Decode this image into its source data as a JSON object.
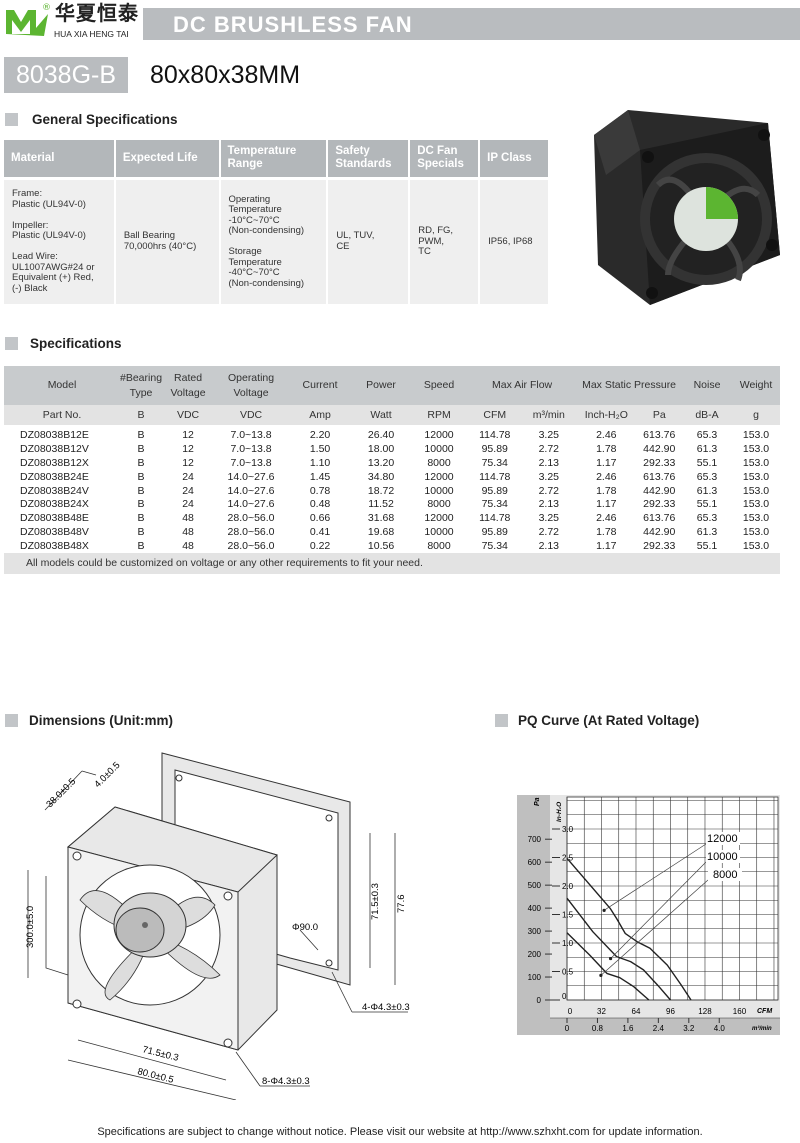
{
  "brand": {
    "cn_name": "华夏恒泰",
    "en_name": "HUA XIA HENG TAI",
    "registered": "®",
    "logo_letter": "M",
    "color": "#5cb531"
  },
  "header": {
    "title": "DC BRUSHLESS FAN",
    "model": "8038G-B",
    "size": "80x80x38MM"
  },
  "general": {
    "heading": "General Specifications",
    "columns": [
      "Material",
      "Expected Life",
      "Temperature Range",
      "Safety Standards",
      "DC Fan Specials",
      "IP Class"
    ],
    "values": [
      "Frame:\nPlastic (UL94V-0)\n\nImpeller:\nPlastic (UL94V-0)\n\nLead Wire:\nUL1007AWG#24 or\nEquivalent (+) Red,\n(-) Black",
      "Ball Bearing\n70,000hrs (40°C)",
      "Operating\nTemperature\n-10°C~70°C\n (Non-condensing)\n\nStorage\nTemperature\n-40°C~70°C\n(Non-condensing)",
      "UL, TUV,\nCE",
      "RD, FG,\nPWM,\nTC",
      "IP56, IP68"
    ]
  },
  "specs": {
    "heading": "Specifications",
    "header1": [
      "Model",
      "#Bearing Type",
      "Rated Voltage",
      "Operating Voltage",
      "Current",
      "Power",
      "Speed",
      "Max  Air  Flow",
      "Max Static  Pressure",
      "Noise",
      "Weight"
    ],
    "header2": [
      "Part No.",
      "B",
      "VDC",
      "VDC",
      "Amp",
      "Watt",
      "RPM",
      "CFM",
      "m³/min",
      "Inch-H₂O",
      "Pa",
      "dB-A",
      "g"
    ],
    "rows": [
      [
        "DZ08038B12E",
        "B",
        "12",
        "7.0~13.8",
        "2.20",
        "26.40",
        "12000",
        "114.78",
        "3.25",
        "2.46",
        "613.76",
        "65.3",
        "153.0"
      ],
      [
        "DZ08038B12V",
        "B",
        "12",
        "7.0~13.8",
        "1.50",
        "18.00",
        "10000",
        "95.89",
        "2.72",
        "1.78",
        "442.90",
        "61.3",
        "153.0"
      ],
      [
        "DZ08038B12X",
        "B",
        "12",
        "7.0~13.8",
        "1.10",
        "13.20",
        "8000",
        "75.34",
        "2.13",
        "1.17",
        "292.33",
        "55.1",
        "153.0"
      ],
      [
        "DZ08038B24E",
        "B",
        "24",
        "14.0~27.6",
        "1.45",
        "34.80",
        "12000",
        "114.78",
        "3.25",
        "2.46",
        "613.76",
        "65.3",
        "153.0"
      ],
      [
        "DZ08038B24V",
        "B",
        "24",
        "14.0~27.6",
        "0.78",
        "18.72",
        "10000",
        "95.89",
        "2.72",
        "1.78",
        "442.90",
        "61.3",
        "153.0"
      ],
      [
        "DZ08038B24X",
        "B",
        "24",
        "14.0~27.6",
        "0.48",
        "11.52",
        "8000",
        "75.34",
        "2.13",
        "1.17",
        "292.33",
        "55.1",
        "153.0"
      ],
      [
        "DZ08038B48E",
        "B",
        "48",
        "28.0~56.0",
        "0.66",
        "31.68",
        "12000",
        "114.78",
        "3.25",
        "2.46",
        "613.76",
        "65.3",
        "153.0"
      ],
      [
        "DZ08038B48V",
        "B",
        "48",
        "28.0~56.0",
        "0.41",
        "19.68",
        "10000",
        "95.89",
        "2.72",
        "1.78",
        "442.90",
        "61.3",
        "153.0"
      ],
      [
        "DZ08038B48X",
        "B",
        "48",
        "28.0~56.0",
        "0.22",
        "10.56",
        "8000",
        "75.34",
        "2.13",
        "1.17",
        "292.33",
        "55.1",
        "153.0"
      ]
    ],
    "note": "All models could be customized on voltage or any other requirements to fit your need."
  },
  "dimensions": {
    "heading": "Dimensions (Unit:mm)",
    "labels": {
      "depth": "38.0±0.5",
      "flange": "4.0±0.5",
      "lead": "300.0±5.0",
      "diameter": "Φ90.0",
      "hole_span_v": "71.5±0.3",
      "height": "77.6",
      "guard_holes": "4-Φ4.3±0.3",
      "hole_span_h": "71.5±0.3",
      "width": "80.0±0.5",
      "fan_holes": "8-Φ4.3±0.3"
    }
  },
  "chart_data": {
    "type": "line",
    "title": "PQ Curve (At Rated Voltage)",
    "xlabel": "CFM",
    "x2label": "m³/min",
    "ylabel": "Pa",
    "y2label": "In-H₂O",
    "xlim": [
      0,
      180
    ],
    "ylim": [
      0,
      750
    ],
    "x_ticks": [
      0,
      32,
      64,
      96,
      128,
      160
    ],
    "x2_ticks": [
      "0",
      "0.8",
      "1.6",
      "2.4",
      "3.2",
      "4.0"
    ],
    "y_ticks": [
      0,
      100,
      200,
      300,
      400,
      500,
      600,
      700
    ],
    "y2_ticks": [
      "0",
      "0.5",
      "1.0",
      "1.5",
      "2.0",
      "2.5",
      "3.0"
    ],
    "grid": true,
    "series": [
      {
        "name": "12000",
        "points": [
          [
            0,
            617
          ],
          [
            40,
            399
          ],
          [
            46,
            355
          ],
          [
            54,
            290
          ],
          [
            65,
            254
          ],
          [
            77,
            225
          ],
          [
            93,
            152
          ],
          [
            106,
            65
          ],
          [
            115,
            0
          ]
        ]
      },
      {
        "name": "10000",
        "points": [
          [
            0,
            443
          ],
          [
            24,
            297
          ],
          [
            46,
            189
          ],
          [
            59,
            167
          ],
          [
            71,
            131
          ],
          [
            84,
            65
          ],
          [
            96,
            0
          ]
        ]
      },
      {
        "name": "8000",
        "points": [
          [
            0,
            293
          ],
          [
            21,
            196
          ],
          [
            37,
            116
          ],
          [
            49,
            97
          ],
          [
            62,
            58
          ],
          [
            76,
            0
          ]
        ]
      }
    ]
  },
  "footer": "Specifications are subject to change without notice. Please visit our website at http://www.szhxht.com for update information."
}
